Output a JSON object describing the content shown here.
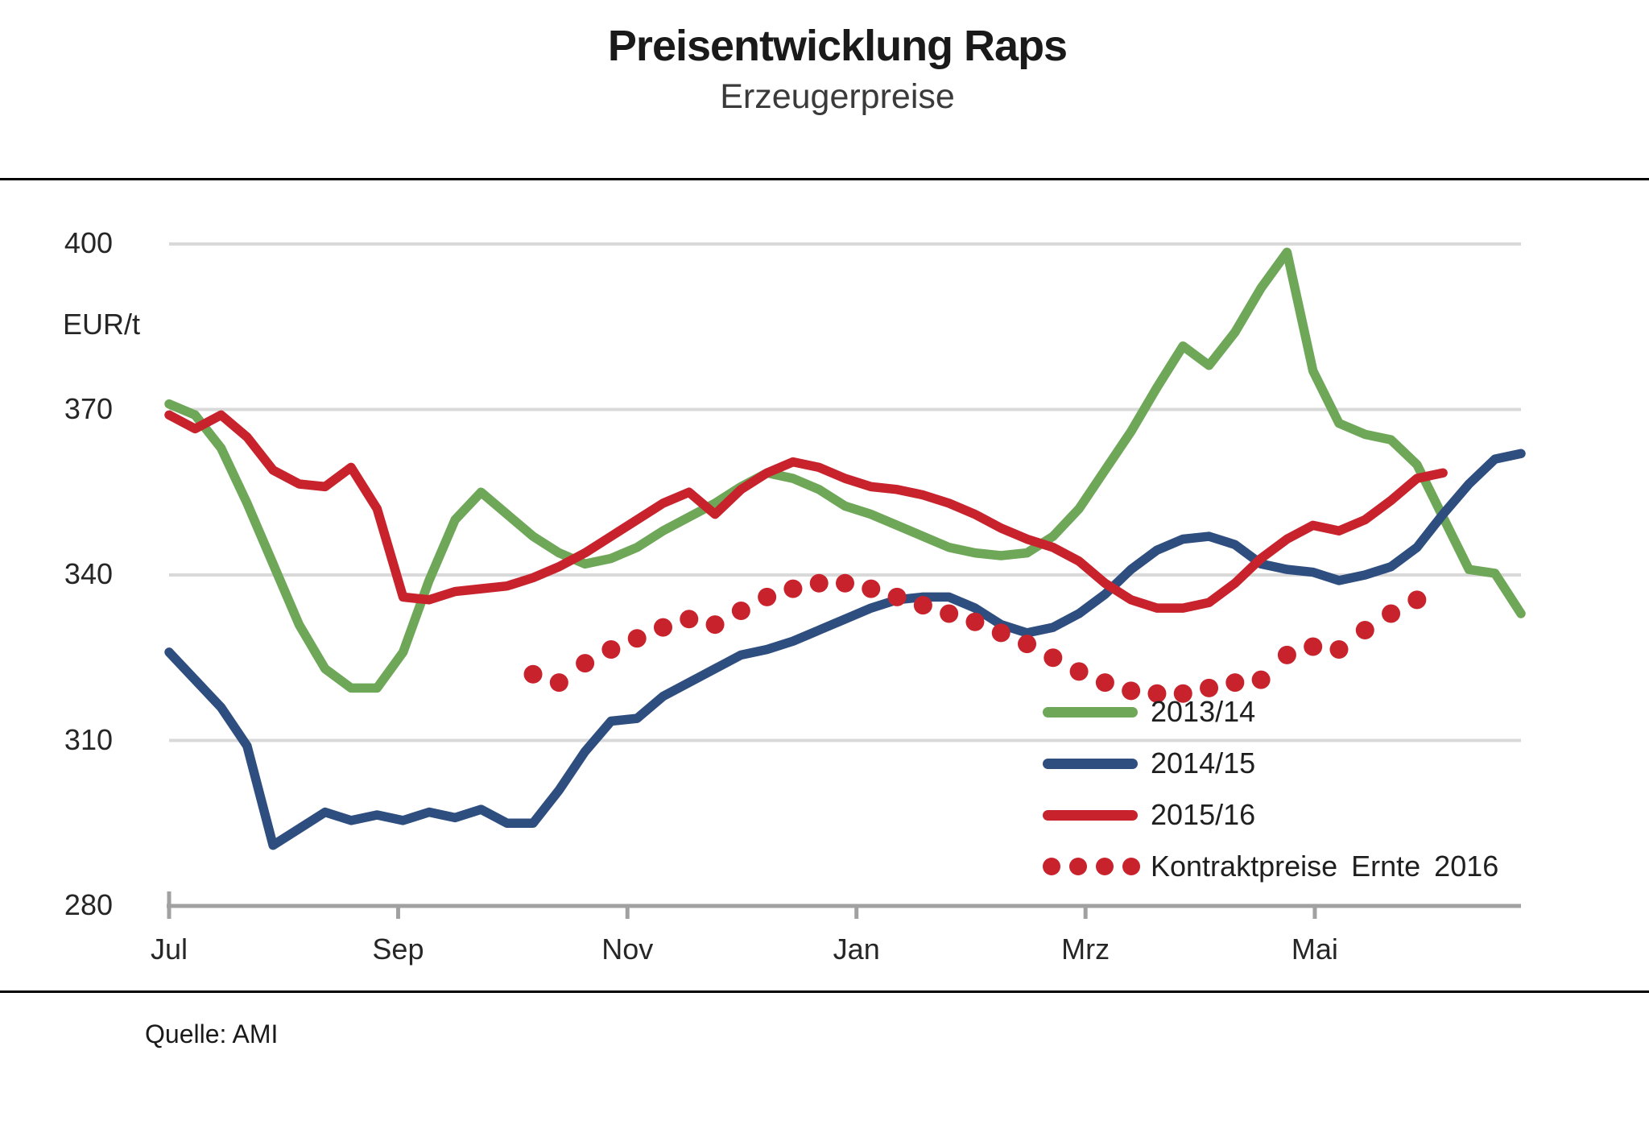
{
  "page": {
    "title": "Preisentwicklung Raps",
    "subtitle": "Erzeugerpreise",
    "unit": "EUR/t",
    "source": "Quelle: AMI"
  },
  "chart_data": {
    "type": "line",
    "title": "Preisentwicklung Raps",
    "subtitle": "Erzeugerpreise",
    "ylabel": "EUR/t",
    "ylim": [
      280,
      400
    ],
    "yticks": [
      280,
      310,
      340,
      370,
      400
    ],
    "x_unit": "week-of-season (Jul .. Jun)",
    "x_range": [
      0,
      52
    ],
    "xticks": [
      {
        "label": "Jul",
        "pos": 0
      },
      {
        "label": "Sep",
        "pos": 8.81
      },
      {
        "label": "Nov",
        "pos": 17.63
      },
      {
        "label": "Jan",
        "pos": 26.44
      },
      {
        "label": "Mrz",
        "pos": 35.25
      },
      {
        "label": "Mai",
        "pos": 44.07
      }
    ],
    "grid": "horizontal-only",
    "legend_position": "inside-lower-right",
    "colors": {
      "grid": "#D9D9D9",
      "axis": "#A1A1A1",
      "green_2013_14": "#6EA758",
      "blue_2014_15": "#2F4E80",
      "red_2015_16": "#C8232C"
    },
    "series": [
      {
        "name": "2013/14",
        "color": "#6EA758",
        "style": "solid",
        "values": [
          371,
          369,
          363,
          353,
          342,
          331,
          323,
          319.5,
          319.5,
          326,
          339,
          350,
          355,
          351,
          347,
          344,
          342,
          343,
          345,
          348,
          350.5,
          353,
          356,
          358.5,
          357.5,
          355.5,
          352.5,
          351,
          349,
          347,
          345,
          344,
          343.5,
          344,
          347,
          352,
          359,
          366,
          374,
          381.5,
          378,
          384,
          392,
          398.5,
          377,
          367.5,
          365.5,
          364.5,
          360,
          350.5,
          341,
          340.3,
          333
        ]
      },
      {
        "name": "2014/15",
        "color": "#2F4E80",
        "style": "solid",
        "values": [
          326,
          321,
          316,
          309,
          291,
          294,
          297,
          295.5,
          296.5,
          295.5,
          297,
          296,
          297.5,
          295,
          295,
          301,
          308,
          313.5,
          314,
          318,
          320.5,
          323,
          325.5,
          326.5,
          328,
          330,
          332,
          334,
          335.5,
          336,
          336,
          334,
          331,
          329.5,
          330.5,
          333,
          336.5,
          341,
          344.5,
          346.5,
          347,
          345.5,
          342,
          341,
          340.5,
          339,
          340,
          341.5,
          345,
          351,
          356.5,
          361,
          362
        ]
      },
      {
        "name": "2015/16",
        "color": "#C8232C",
        "style": "solid",
        "values": [
          369,
          366.5,
          369,
          365,
          359,
          356.5,
          356,
          359.5,
          352,
          336,
          335.5,
          337,
          337.5,
          338,
          339.5,
          341.5,
          344,
          347,
          350,
          353,
          355,
          351,
          355.5,
          358.5,
          360.5,
          359.5,
          357.5,
          356,
          355.5,
          354.5,
          353,
          351,
          348.5,
          346.5,
          345,
          342.5,
          338.5,
          335.5,
          334,
          334,
          335,
          338.5,
          343,
          346.5,
          349,
          348,
          350,
          353.5,
          357.5,
          358.5
        ]
      },
      {
        "name": "Kontraktpreise Ernte 2016",
        "color": "#C8232C",
        "style": "dotted",
        "values": [
          null,
          null,
          null,
          null,
          null,
          null,
          null,
          null,
          null,
          null,
          null,
          null,
          null,
          null,
          322,
          320.5,
          324,
          326.5,
          328.5,
          330.5,
          332,
          331,
          333.5,
          336,
          337.5,
          338.5,
          338.5,
          337.5,
          336,
          334.5,
          333,
          331.5,
          329.5,
          327.5,
          325,
          322.5,
          320.5,
          319,
          318.5,
          318.5,
          319.5,
          320.5,
          321,
          325.5,
          327,
          326.5,
          330,
          333,
          335.5
        ]
      }
    ]
  }
}
